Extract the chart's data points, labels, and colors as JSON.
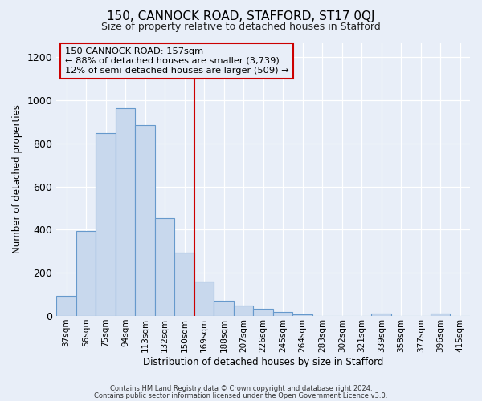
{
  "title": "150, CANNOCK ROAD, STAFFORD, ST17 0QJ",
  "subtitle": "Size of property relative to detached houses in Stafford",
  "xlabel": "Distribution of detached houses by size in Stafford",
  "ylabel": "Number of detached properties",
  "bar_color": "#c8d8ed",
  "bar_edge_color": "#6699cc",
  "background_color": "#e8eef8",
  "plot_bg_color": "#e8eef8",
  "categories": [
    "37sqm",
    "56sqm",
    "75sqm",
    "94sqm",
    "113sqm",
    "132sqm",
    "150sqm",
    "169sqm",
    "188sqm",
    "207sqm",
    "226sqm",
    "245sqm",
    "264sqm",
    "283sqm",
    "302sqm",
    "321sqm",
    "339sqm",
    "358sqm",
    "377sqm",
    "396sqm",
    "415sqm"
  ],
  "values": [
    93,
    395,
    848,
    965,
    885,
    455,
    295,
    160,
    72,
    50,
    33,
    20,
    7,
    0,
    0,
    0,
    10,
    0,
    0,
    10,
    0
  ],
  "ylim": [
    0,
    1270
  ],
  "yticks": [
    0,
    200,
    400,
    600,
    800,
    1000,
    1200
  ],
  "property_line_color": "#cc0000",
  "annotation_text_line1": "150 CANNOCK ROAD: 157sqm",
  "annotation_text_line2": "← 88% of detached houses are smaller (3,739)",
  "annotation_text_line3": "12% of semi-detached houses are larger (509) →",
  "annotation_box_edge_color": "#cc0000",
  "footnote1": "Contains HM Land Registry data © Crown copyright and database right 2024.",
  "footnote2": "Contains public sector information licensed under the Open Government Licence v3.0."
}
